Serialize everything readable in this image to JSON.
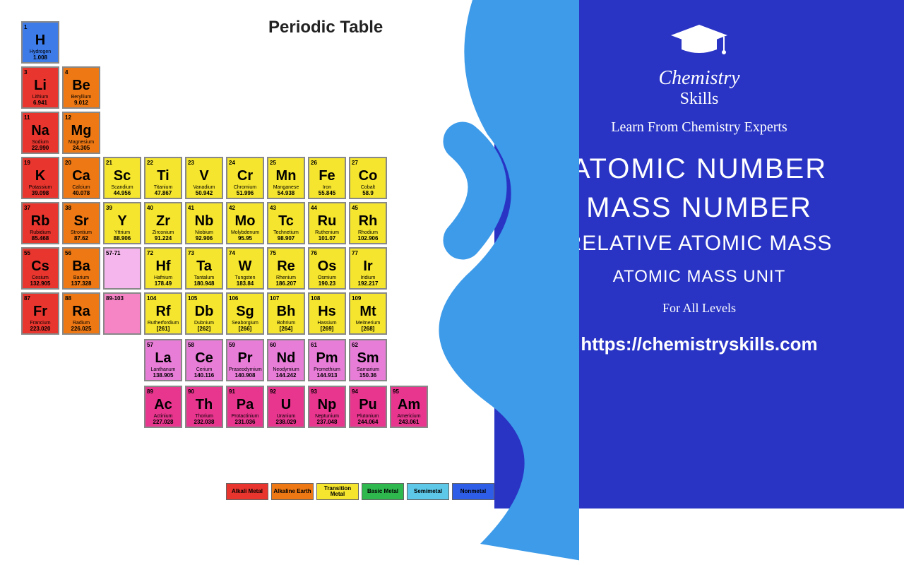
{
  "title": "Periodic Table",
  "colors": {
    "blue_bg": "#2934c4",
    "swoosh": "#3d9be9",
    "h": "#3d7be9",
    "alkali": "#e8352e",
    "alkaline": "#ed7814",
    "transition": "#f5e52e",
    "lanth": "#e87dd8",
    "actin": "#e8358e",
    "basic": "#2eb84e",
    "semi": "#5dc8e8",
    "nonmetal": "#2e5ee8"
  },
  "elements": {
    "r1": [
      {
        "n": "1",
        "s": "H",
        "nm": "Hydrogen",
        "m": "1.008",
        "c": "#3d7be9"
      }
    ],
    "r2": [
      {
        "n": "3",
        "s": "Li",
        "nm": "Lithium",
        "m": "6.941",
        "c": "#e8352e"
      },
      {
        "n": "4",
        "s": "Be",
        "nm": "Beryllium",
        "m": "9.012",
        "c": "#ed7814"
      }
    ],
    "r3": [
      {
        "n": "11",
        "s": "Na",
        "nm": "Sodium",
        "m": "22.990",
        "c": "#e8352e"
      },
      {
        "n": "12",
        "s": "Mg",
        "nm": "Magnesium",
        "m": "24.305",
        "c": "#ed7814"
      }
    ],
    "r4": [
      {
        "n": "19",
        "s": "K",
        "nm": "Potassium",
        "m": "39.098",
        "c": "#e8352e"
      },
      {
        "n": "20",
        "s": "Ca",
        "nm": "Calcium",
        "m": "40.078",
        "c": "#ed7814"
      },
      {
        "n": "21",
        "s": "Sc",
        "nm": "Scandium",
        "m": "44.956",
        "c": "#f5e52e"
      },
      {
        "n": "22",
        "s": "Ti",
        "nm": "Titanium",
        "m": "47.867",
        "c": "#f5e52e"
      },
      {
        "n": "23",
        "s": "V",
        "nm": "Vanadium",
        "m": "50.942",
        "c": "#f5e52e"
      },
      {
        "n": "24",
        "s": "Cr",
        "nm": "Chromium",
        "m": "51.996",
        "c": "#f5e52e"
      },
      {
        "n": "25",
        "s": "Mn",
        "nm": "Manganese",
        "m": "54.938",
        "c": "#f5e52e"
      },
      {
        "n": "26",
        "s": "Fe",
        "nm": "Iron",
        "m": "55.845",
        "c": "#f5e52e"
      },
      {
        "n": "27",
        "s": "Co",
        "nm": "Cobalt",
        "m": "58.9",
        "c": "#f5e52e"
      }
    ],
    "r5": [
      {
        "n": "37",
        "s": "Rb",
        "nm": "Rubidium",
        "m": "85.468",
        "c": "#e8352e"
      },
      {
        "n": "38",
        "s": "Sr",
        "nm": "Strontium",
        "m": "87.62",
        "c": "#ed7814"
      },
      {
        "n": "39",
        "s": "Y",
        "nm": "Yttrium",
        "m": "88.906",
        "c": "#f5e52e"
      },
      {
        "n": "40",
        "s": "Zr",
        "nm": "Zirconium",
        "m": "91.224",
        "c": "#f5e52e"
      },
      {
        "n": "41",
        "s": "Nb",
        "nm": "Niobium",
        "m": "92.906",
        "c": "#f5e52e"
      },
      {
        "n": "42",
        "s": "Mo",
        "nm": "Molybdenum",
        "m": "95.95",
        "c": "#f5e52e"
      },
      {
        "n": "43",
        "s": "Tc",
        "nm": "Technetium",
        "m": "98.907",
        "c": "#f5e52e"
      },
      {
        "n": "44",
        "s": "Ru",
        "nm": "Ruthenium",
        "m": "101.07",
        "c": "#f5e52e"
      },
      {
        "n": "45",
        "s": "Rh",
        "nm": "Rhodium",
        "m": "102.906",
        "c": "#f5e52e"
      }
    ],
    "r6": [
      {
        "n": "55",
        "s": "Cs",
        "nm": "Cesium",
        "m": "132.905",
        "c": "#e8352e"
      },
      {
        "n": "56",
        "s": "Ba",
        "nm": "Barium",
        "m": "137.328",
        "c": "#ed7814"
      },
      {
        "n": "57-71",
        "s": "",
        "nm": "",
        "m": "",
        "c": "#f5b5ed"
      },
      {
        "n": "72",
        "s": "Hf",
        "nm": "Hafnium",
        "m": "178.49",
        "c": "#f5e52e"
      },
      {
        "n": "73",
        "s": "Ta",
        "nm": "Tantalum",
        "m": "180.948",
        "c": "#f5e52e"
      },
      {
        "n": "74",
        "s": "W",
        "nm": "Tungsten",
        "m": "183.84",
        "c": "#f5e52e"
      },
      {
        "n": "75",
        "s": "Re",
        "nm": "Rhenium",
        "m": "186.207",
        "c": "#f5e52e"
      },
      {
        "n": "76",
        "s": "Os",
        "nm": "Osmium",
        "m": "190.23",
        "c": "#f5e52e"
      },
      {
        "n": "77",
        "s": "Ir",
        "nm": "Iridium",
        "m": "192.217",
        "c": "#f5e52e"
      }
    ],
    "r7": [
      {
        "n": "87",
        "s": "Fr",
        "nm": "Francium",
        "m": "223.020",
        "c": "#e8352e"
      },
      {
        "n": "88",
        "s": "Ra",
        "nm": "Radium",
        "m": "226.025",
        "c": "#ed7814"
      },
      {
        "n": "89-103",
        "s": "",
        "nm": "",
        "m": "",
        "c": "#f585c5"
      },
      {
        "n": "104",
        "s": "Rf",
        "nm": "Rutherfordium",
        "m": "[261]",
        "c": "#f5e52e"
      },
      {
        "n": "105",
        "s": "Db",
        "nm": "Dubnium",
        "m": "[262]",
        "c": "#f5e52e"
      },
      {
        "n": "106",
        "s": "Sg",
        "nm": "Seaborgium",
        "m": "[266]",
        "c": "#f5e52e"
      },
      {
        "n": "107",
        "s": "Bh",
        "nm": "Bohrium",
        "m": "[264]",
        "c": "#f5e52e"
      },
      {
        "n": "108",
        "s": "Hs",
        "nm": "Hassium",
        "m": "[269]",
        "c": "#f5e52e"
      },
      {
        "n": "109",
        "s": "Mt",
        "nm": "Meitnerium",
        "m": "[268]",
        "c": "#f5e52e"
      }
    ],
    "la": [
      {
        "n": "57",
        "s": "La",
        "nm": "Lanthanum",
        "m": "138.905",
        "c": "#e87dd8"
      },
      {
        "n": "58",
        "s": "Ce",
        "nm": "Cerium",
        "m": "140.116",
        "c": "#e87dd8"
      },
      {
        "n": "59",
        "s": "Pr",
        "nm": "Praseodymium",
        "m": "140.908",
        "c": "#e87dd8"
      },
      {
        "n": "60",
        "s": "Nd",
        "nm": "Neodymium",
        "m": "144.242",
        "c": "#e87dd8"
      },
      {
        "n": "61",
        "s": "Pm",
        "nm": "Promethium",
        "m": "144.913",
        "c": "#e87dd8"
      },
      {
        "n": "62",
        "s": "Sm",
        "nm": "Samarium",
        "m": "150.36",
        "c": "#e87dd8"
      }
    ],
    "ac": [
      {
        "n": "89",
        "s": "Ac",
        "nm": "Actinium",
        "m": "227.028",
        "c": "#e8358e"
      },
      {
        "n": "90",
        "s": "Th",
        "nm": "Thorium",
        "m": "232.038",
        "c": "#e8358e"
      },
      {
        "n": "91",
        "s": "Pa",
        "nm": "Protactinium",
        "m": "231.036",
        "c": "#e8358e"
      },
      {
        "n": "92",
        "s": "U",
        "nm": "Uranium",
        "m": "238.029",
        "c": "#e8358e"
      },
      {
        "n": "93",
        "s": "Np",
        "nm": "Neptunium",
        "m": "237.048",
        "c": "#e8358e"
      },
      {
        "n": "94",
        "s": "Pu",
        "nm": "Plutonium",
        "m": "244.064",
        "c": "#e8358e"
      },
      {
        "n": "95",
        "s": "Am",
        "nm": "Americium",
        "m": "243.061",
        "c": "#e8358e"
      }
    ]
  },
  "legend": [
    {
      "t": "Alkali Metal",
      "c": "#e8352e"
    },
    {
      "t": "Alkaline Earth",
      "c": "#ed7814"
    },
    {
      "t": "Transition Metal",
      "c": "#f5e52e"
    },
    {
      "t": "Basic Metal",
      "c": "#2eb84e"
    },
    {
      "t": "Semimetal",
      "c": "#5dc8e8"
    },
    {
      "t": "Nonmetal",
      "c": "#2e5ee8"
    }
  ],
  "right": {
    "logo1": "Chemistry",
    "logo2": "Skills",
    "tagline": "Learn From Chemistry Experts",
    "h1a": "ATOMIC NUMBER",
    "h1b": "MASS NUMBER",
    "h2": "RELATIVE ATOMIC MASS",
    "h3": "ATOMIC MASS UNIT",
    "sub": "For All Levels",
    "url": "https://chemistryskills.com"
  }
}
